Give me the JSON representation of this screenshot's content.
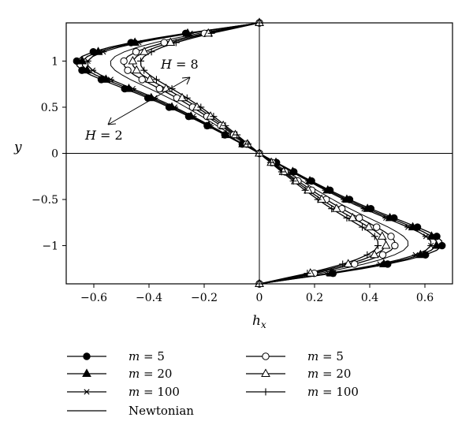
{
  "chart_data": {
    "type": "line",
    "xlabel": "h",
    "xlabel_subscript": "x",
    "ylabel": "y",
    "xlim": [
      -0.7,
      0.7
    ],
    "ylim": [
      -1.414,
      1.414
    ],
    "xticks": [
      -0.6,
      -0.4,
      -0.2,
      0,
      0.2,
      0.4,
      0.6
    ],
    "xtick_labels": [
      "−0.6",
      "−0.4",
      "−0.2",
      "0",
      "0.2",
      "0.4",
      "0.6"
    ],
    "yticks": [
      -1,
      -0.5,
      0,
      0.5,
      1
    ],
    "ytick_labels": [
      "−1",
      "−0.5",
      "0",
      "0.5",
      "1"
    ],
    "grid": false,
    "zero_lines": true,
    "annotations": [
      {
        "var": "H",
        "eq": " = 8"
      },
      {
        "var": "H",
        "eq": " = 2"
      }
    ],
    "y": [
      -1.414,
      -1.35,
      -1.3,
      -1.25,
      -1.2,
      -1.15,
      -1.1,
      -1.05,
      -1.0,
      -0.95,
      -0.9,
      -0.85,
      -0.8,
      -0.75,
      -0.7,
      -0.65,
      -0.6,
      -0.55,
      -0.5,
      -0.45,
      -0.4,
      -0.35,
      -0.3,
      -0.25,
      -0.2,
      -0.15,
      -0.1,
      -0.05,
      0.0,
      0.05,
      0.1,
      0.15,
      0.2,
      0.25,
      0.3,
      0.35,
      0.4,
      0.45,
      0.5,
      0.55,
      0.6,
      0.65,
      0.7,
      0.75,
      0.8,
      0.85,
      0.9,
      0.95,
      1.0,
      1.05,
      1.1,
      1.15,
      1.2,
      1.25,
      1.3,
      1.35,
      1.414
    ],
    "series": [
      {
        "label_var": "m",
        "label_eq": " = 5",
        "group": "H = 2",
        "marker": "filled-circle",
        "values": [
          0.0,
          0.149,
          0.267,
          0.372,
          0.465,
          0.542,
          0.602,
          0.643,
          0.662,
          0.661,
          0.643,
          0.612,
          0.573,
          0.531,
          0.488,
          0.445,
          0.404,
          0.364,
          0.327,
          0.291,
          0.256,
          0.222,
          0.189,
          0.157,
          0.125,
          0.094,
          0.062,
          0.031,
          0.0,
          -0.031,
          -0.062,
          -0.094,
          -0.125,
          -0.157,
          -0.189,
          -0.222,
          -0.256,
          -0.291,
          -0.327,
          -0.364,
          -0.404,
          -0.445,
          -0.488,
          -0.531,
          -0.573,
          -0.612,
          -0.643,
          -0.661,
          -0.662,
          -0.643,
          -0.602,
          -0.542,
          -0.465,
          -0.372,
          -0.267,
          -0.149,
          0.0
        ]
      },
      {
        "label_var": "m",
        "label_eq": " = 20",
        "group": "H = 2",
        "marker": "filled-triangle",
        "values": [
          0.0,
          0.145,
          0.26,
          0.361,
          0.451,
          0.526,
          0.584,
          0.623,
          0.642,
          0.641,
          0.624,
          0.594,
          0.556,
          0.515,
          0.473,
          0.432,
          0.392,
          0.353,
          0.317,
          0.282,
          0.248,
          0.215,
          0.183,
          0.152,
          0.121,
          0.091,
          0.06,
          0.03,
          0.0,
          -0.03,
          -0.06,
          -0.091,
          -0.121,
          -0.152,
          -0.183,
          -0.215,
          -0.248,
          -0.282,
          -0.317,
          -0.353,
          -0.392,
          -0.432,
          -0.473,
          -0.515,
          -0.556,
          -0.594,
          -0.624,
          -0.641,
          -0.642,
          -0.623,
          -0.584,
          -0.526,
          -0.451,
          -0.361,
          -0.26,
          -0.145,
          0.0
        ]
      },
      {
        "label_var": "m",
        "label_eq": " = 100",
        "group": "H = 2",
        "marker": "asterisk",
        "values": [
          0.0,
          0.14,
          0.251,
          0.35,
          0.437,
          0.509,
          0.566,
          0.604,
          0.622,
          0.621,
          0.604,
          0.576,
          0.539,
          0.499,
          0.459,
          0.419,
          0.38,
          0.342,
          0.307,
          0.273,
          0.24,
          0.209,
          0.178,
          0.147,
          0.118,
          0.088,
          0.059,
          0.029,
          0.0,
          -0.029,
          -0.059,
          -0.088,
          -0.118,
          -0.147,
          -0.178,
          -0.209,
          -0.24,
          -0.273,
          -0.307,
          -0.342,
          -0.38,
          -0.419,
          -0.459,
          -0.499,
          -0.539,
          -0.576,
          -0.604,
          -0.621,
          -0.622,
          -0.604,
          -0.566,
          -0.509,
          -0.437,
          -0.35,
          -0.251,
          -0.14,
          0.0
        ]
      },
      {
        "label_var": "m",
        "label_eq": " = 5",
        "group": "H = 8",
        "marker": "open-circle",
        "values": [
          0.0,
          0.111,
          0.199,
          0.276,
          0.345,
          0.402,
          0.447,
          0.477,
          0.491,
          0.49,
          0.477,
          0.454,
          0.425,
          0.394,
          0.362,
          0.33,
          0.299,
          0.27,
          0.242,
          0.216,
          0.19,
          0.165,
          0.14,
          0.116,
          0.093,
          0.07,
          0.046,
          0.023,
          0.0,
          -0.023,
          -0.046,
          -0.07,
          -0.093,
          -0.116,
          -0.14,
          -0.165,
          -0.19,
          -0.216,
          -0.242,
          -0.27,
          -0.299,
          -0.33,
          -0.362,
          -0.394,
          -0.425,
          -0.454,
          -0.477,
          -0.49,
          -0.491,
          -0.477,
          -0.447,
          -0.402,
          -0.345,
          -0.276,
          -0.199,
          -0.111,
          0.0
        ]
      },
      {
        "label_var": "m",
        "label_eq": " = 20",
        "group": "H = 8",
        "marker": "open-triangle",
        "values": [
          0.0,
          0.103,
          0.185,
          0.258,
          0.322,
          0.375,
          0.417,
          0.445,
          0.459,
          0.458,
          0.445,
          0.424,
          0.397,
          0.368,
          0.338,
          0.308,
          0.28,
          0.252,
          0.226,
          0.201,
          0.177,
          0.154,
          0.131,
          0.109,
          0.087,
          0.065,
          0.043,
          0.021,
          0.0,
          -0.021,
          -0.043,
          -0.065,
          -0.087,
          -0.109,
          -0.131,
          -0.154,
          -0.177,
          -0.201,
          -0.226,
          -0.252,
          -0.28,
          -0.308,
          -0.338,
          -0.368,
          -0.397,
          -0.424,
          -0.445,
          -0.458,
          -0.459,
          -0.445,
          -0.417,
          -0.375,
          -0.322,
          -0.258,
          -0.185,
          -0.103,
          0.0
        ]
      },
      {
        "label_var": "m",
        "label_eq": " = 100",
        "group": "H = 8",
        "marker": "plus",
        "values": [
          0.0,
          0.097,
          0.174,
          0.242,
          0.302,
          0.352,
          0.391,
          0.418,
          0.43,
          0.429,
          0.418,
          0.398,
          0.373,
          0.345,
          0.317,
          0.289,
          0.262,
          0.237,
          0.212,
          0.189,
          0.166,
          0.144,
          0.123,
          0.102,
          0.081,
          0.061,
          0.041,
          0.02,
          0.0,
          -0.02,
          -0.041,
          -0.061,
          -0.081,
          -0.102,
          -0.123,
          -0.144,
          -0.166,
          -0.189,
          -0.212,
          -0.237,
          -0.262,
          -0.289,
          -0.317,
          -0.345,
          -0.373,
          -0.398,
          -0.418,
          -0.429,
          -0.43,
          -0.418,
          -0.391,
          -0.352,
          -0.302,
          -0.242,
          -0.174,
          -0.097,
          0.0
        ]
      },
      {
        "label_var": "",
        "label_eq": "Newtonian",
        "group": "",
        "marker": "none",
        "values": [
          0.0,
          0.122,
          0.218,
          0.303,
          0.378,
          0.441,
          0.49,
          0.523,
          0.539,
          0.538,
          0.523,
          0.498,
          0.467,
          0.432,
          0.397,
          0.362,
          0.328,
          0.296,
          0.266,
          0.237,
          0.208,
          0.181,
          0.154,
          0.127,
          0.102,
          0.076,
          0.051,
          0.025,
          0.0,
          -0.025,
          -0.051,
          -0.076,
          -0.102,
          -0.127,
          -0.154,
          -0.181,
          -0.208,
          -0.237,
          -0.266,
          -0.296,
          -0.328,
          -0.362,
          -0.397,
          -0.432,
          -0.467,
          -0.498,
          -0.523,
          -0.538,
          -0.539,
          -0.523,
          -0.49,
          -0.441,
          -0.378,
          -0.303,
          -0.218,
          -0.122,
          0.0
        ]
      }
    ]
  }
}
